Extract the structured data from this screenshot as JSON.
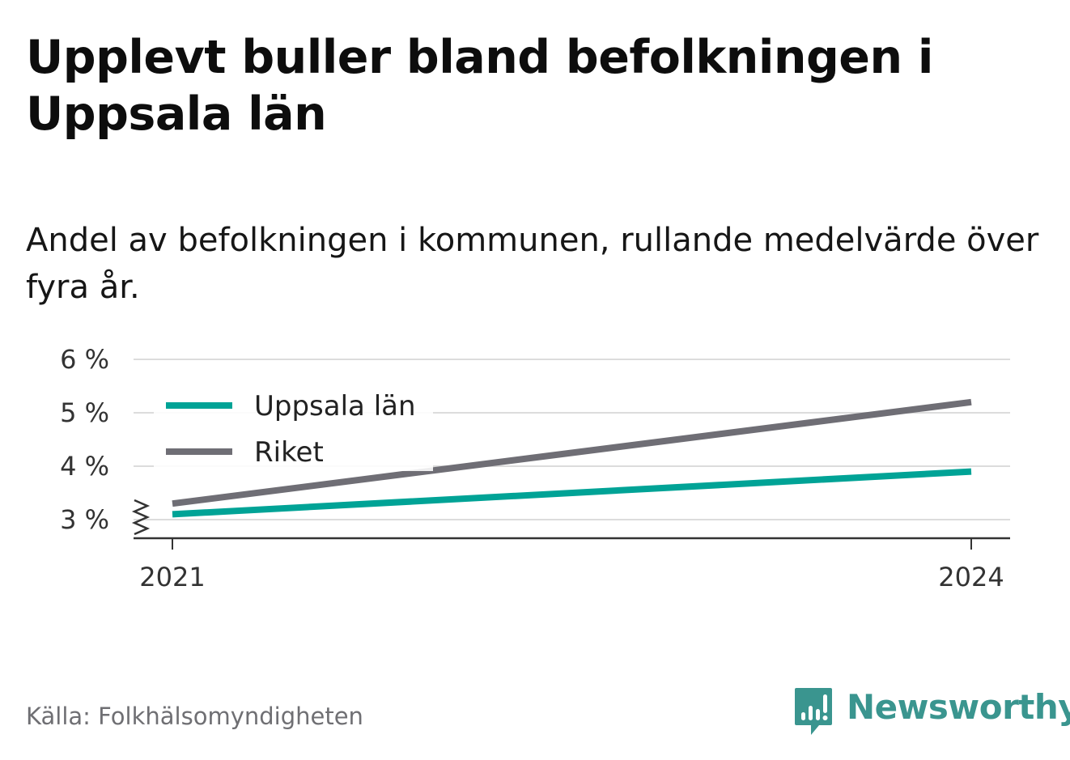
{
  "title": "Upplevt buller bland befolkningen i Uppsala län",
  "subtitle": "Andel av befolkningen i kommunen, rullande medelvärde över fyra år.",
  "source": "Källa: Folkhälsomyndigheten",
  "brand": {
    "name": "Newsworthy"
  },
  "colors": {
    "uppsala": "#00a396",
    "riket": "#6f6e75",
    "grid": "#dcdcdc",
    "axis": "#333333",
    "brand": "#3a958f"
  },
  "chart_data": {
    "type": "line",
    "x": [
      2021,
      2024
    ],
    "x_tick_labels": [
      "2021",
      "2024"
    ],
    "y_tick_labels": [
      "6 %",
      "5 %",
      "4 %",
      "3 %"
    ],
    "y_ticks": [
      6,
      5,
      4,
      3
    ],
    "ylim": [
      2.65,
      6
    ],
    "y_axis_break": true,
    "grid": true,
    "legend_position": "top-left",
    "series": [
      {
        "name": "Uppsala län",
        "values": [
          3.1,
          3.9
        ],
        "color": "#00a396"
      },
      {
        "name": "Riket",
        "values": [
          3.3,
          5.2
        ],
        "color": "#6f6e75"
      }
    ]
  }
}
